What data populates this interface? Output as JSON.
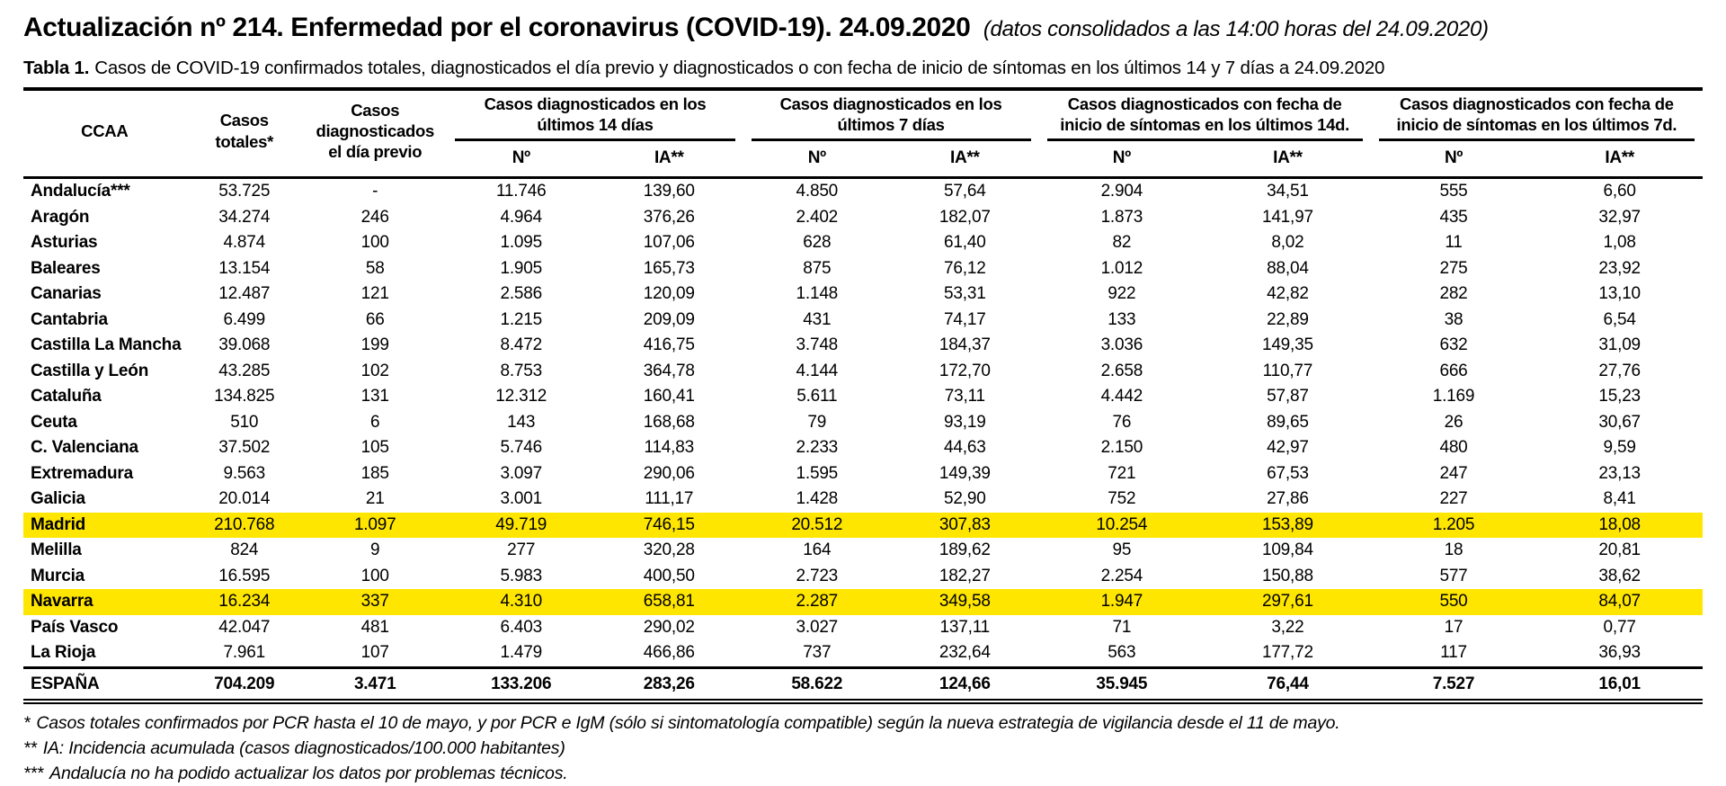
{
  "page": {
    "title": "Actualización nº 214. Enfermedad por el coronavirus (COVID-19). 24.09.2020",
    "title_note": "(datos consolidados a las 14:00 horas del 24.09.2020)",
    "caption_label": "Tabla 1.",
    "caption_text": "Casos de COVID-19 confirmados totales, diagnosticados el día previo y diagnosticados o con fecha de inicio de síntomas en los últimos 14 y 7 días a 24.09.2020"
  },
  "table": {
    "highlight_color": "#FFE600",
    "headers": {
      "ccaa": "CCAA",
      "casos_totales": "Casos totales*",
      "dia_previo": "Casos diagnosticados el día previo",
      "num": "Nº",
      "ia": "IA**",
      "groups": [
        {
          "label": "Casos diagnosticados en los últimos 14 días"
        },
        {
          "label": "Casos diagnosticados en los últimos 7 días"
        },
        {
          "label": "Casos diagnosticados con fecha de inicio de síntomas en los últimos 14d."
        },
        {
          "label": "Casos diagnosticados con fecha de inicio de síntomas en los últimos 7d."
        }
      ]
    },
    "rows": [
      {
        "ccaa": "Andalucía***",
        "highlight": false,
        "values": [
          "53.725",
          "-",
          "11.746",
          "139,60",
          "4.850",
          "57,64",
          "2.904",
          "34,51",
          "555",
          "6,60"
        ]
      },
      {
        "ccaa": "Aragón",
        "highlight": false,
        "values": [
          "34.274",
          "246",
          "4.964",
          "376,26",
          "2.402",
          "182,07",
          "1.873",
          "141,97",
          "435",
          "32,97"
        ]
      },
      {
        "ccaa": "Asturias",
        "highlight": false,
        "values": [
          "4.874",
          "100",
          "1.095",
          "107,06",
          "628",
          "61,40",
          "82",
          "8,02",
          "11",
          "1,08"
        ]
      },
      {
        "ccaa": "Baleares",
        "highlight": false,
        "values": [
          "13.154",
          "58",
          "1.905",
          "165,73",
          "875",
          "76,12",
          "1.012",
          "88,04",
          "275",
          "23,92"
        ]
      },
      {
        "ccaa": "Canarias",
        "highlight": false,
        "values": [
          "12.487",
          "121",
          "2.586",
          "120,09",
          "1.148",
          "53,31",
          "922",
          "42,82",
          "282",
          "13,10"
        ]
      },
      {
        "ccaa": "Cantabria",
        "highlight": false,
        "values": [
          "6.499",
          "66",
          "1.215",
          "209,09",
          "431",
          "74,17",
          "133",
          "22,89",
          "38",
          "6,54"
        ]
      },
      {
        "ccaa": "Castilla La Mancha",
        "highlight": false,
        "values": [
          "39.068",
          "199",
          "8.472",
          "416,75",
          "3.748",
          "184,37",
          "3.036",
          "149,35",
          "632",
          "31,09"
        ]
      },
      {
        "ccaa": "Castilla y León",
        "highlight": false,
        "values": [
          "43.285",
          "102",
          "8.753",
          "364,78",
          "4.144",
          "172,70",
          "2.658",
          "110,77",
          "666",
          "27,76"
        ]
      },
      {
        "ccaa": "Cataluña",
        "highlight": false,
        "values": [
          "134.825",
          "131",
          "12.312",
          "160,41",
          "5.611",
          "73,11",
          "4.442",
          "57,87",
          "1.169",
          "15,23"
        ]
      },
      {
        "ccaa": "Ceuta",
        "highlight": false,
        "values": [
          "510",
          "6",
          "143",
          "168,68",
          "79",
          "93,19",
          "76",
          "89,65",
          "26",
          "30,67"
        ]
      },
      {
        "ccaa": "C. Valenciana",
        "highlight": false,
        "values": [
          "37.502",
          "105",
          "5.746",
          "114,83",
          "2.233",
          "44,63",
          "2.150",
          "42,97",
          "480",
          "9,59"
        ]
      },
      {
        "ccaa": "Extremadura",
        "highlight": false,
        "values": [
          "9.563",
          "185",
          "3.097",
          "290,06",
          "1.595",
          "149,39",
          "721",
          "67,53",
          "247",
          "23,13"
        ]
      },
      {
        "ccaa": "Galicia",
        "highlight": false,
        "values": [
          "20.014",
          "21",
          "3.001",
          "111,17",
          "1.428",
          "52,90",
          "752",
          "27,86",
          "227",
          "8,41"
        ]
      },
      {
        "ccaa": "Madrid",
        "highlight": true,
        "values": [
          "210.768",
          "1.097",
          "49.719",
          "746,15",
          "20.512",
          "307,83",
          "10.254",
          "153,89",
          "1.205",
          "18,08"
        ]
      },
      {
        "ccaa": "Melilla",
        "highlight": false,
        "values": [
          "824",
          "9",
          "277",
          "320,28",
          "164",
          "189,62",
          "95",
          "109,84",
          "18",
          "20,81"
        ]
      },
      {
        "ccaa": "Murcia",
        "highlight": false,
        "values": [
          "16.595",
          "100",
          "5.983",
          "400,50",
          "2.723",
          "182,27",
          "2.254",
          "150,88",
          "577",
          "38,62"
        ]
      },
      {
        "ccaa": "Navarra",
        "highlight": true,
        "values": [
          "16.234",
          "337",
          "4.310",
          "658,81",
          "2.287",
          "349,58",
          "1.947",
          "297,61",
          "550",
          "84,07"
        ]
      },
      {
        "ccaa": "País Vasco",
        "highlight": false,
        "values": [
          "42.047",
          "481",
          "6.403",
          "290,02",
          "3.027",
          "137,11",
          "71",
          "3,22",
          "17",
          "0,77"
        ]
      },
      {
        "ccaa": "La Rioja",
        "highlight": false,
        "values": [
          "7.961",
          "107",
          "1.479",
          "466,86",
          "737",
          "232,64",
          "563",
          "177,72",
          "117",
          "36,93"
        ]
      }
    ],
    "total": {
      "ccaa": "ESPAÑA",
      "values": [
        "704.209",
        "3.471",
        "133.206",
        "283,26",
        "58.622",
        "124,66",
        "35.945",
        "76,44",
        "7.527",
        "16,01"
      ]
    }
  },
  "footnotes": [
    {
      "marker": "*",
      "text": "Casos totales confirmados por PCR hasta el 10 de mayo, y por PCR e IgM (sólo si sintomatología compatible) según la nueva estrategia de vigilancia desde el 11 de mayo."
    },
    {
      "marker": "**",
      "text": "IA: Incidencia acumulada (casos diagnosticados/100.000 habitantes)"
    },
    {
      "marker": "***",
      "text": "Andalucía no ha podido actualizar los datos por problemas técnicos."
    }
  ]
}
